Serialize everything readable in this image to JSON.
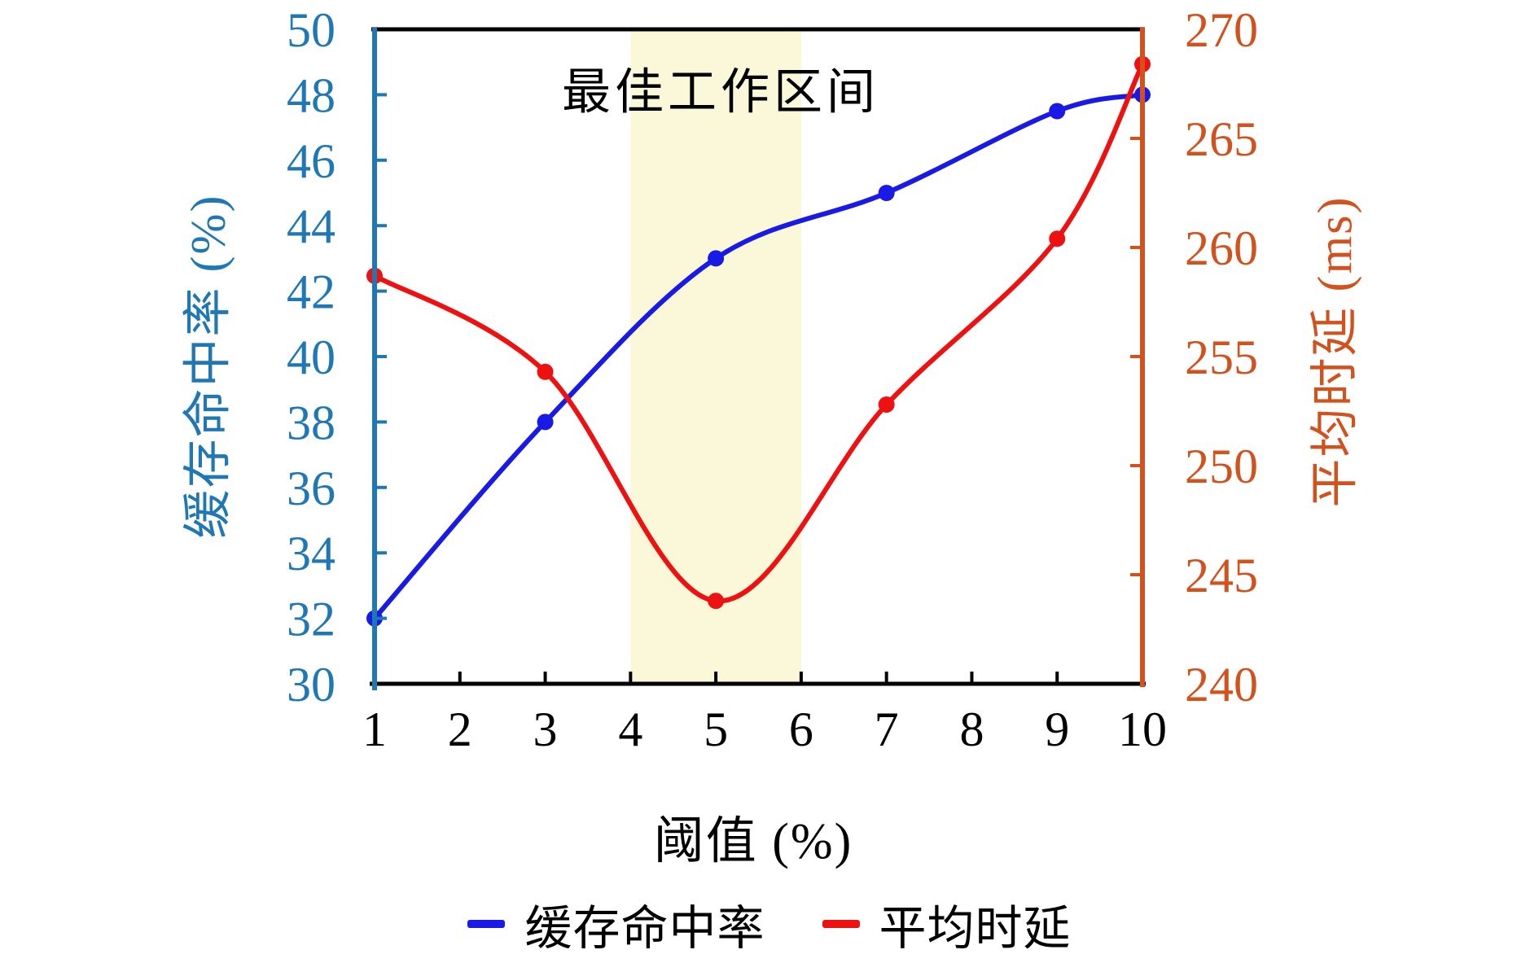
{
  "chart_data": {
    "type": "line",
    "annotation": {
      "text": "最佳工作区间"
    },
    "x_axis": {
      "label": "阈值 (%)",
      "min": 1,
      "max": 10,
      "ticks": [
        1,
        2,
        3,
        4,
        5,
        6,
        7,
        8,
        9,
        10
      ]
    },
    "left_axis": {
      "label": "缓存命中率 (%)",
      "min": 30,
      "max": 50,
      "ticks": [
        30,
        32,
        34,
        36,
        38,
        40,
        42,
        44,
        46,
        48,
        50
      ],
      "color": "#1f77b4"
    },
    "right_axis": {
      "label": "平均时延 (ms)",
      "min": 240,
      "max": 270,
      "ticks": [
        240,
        245,
        250,
        255,
        260,
        265,
        270
      ],
      "color": "#d2521e"
    },
    "highlight_band": {
      "x_start": 4,
      "x_end": 6,
      "color": "#faf8d8"
    },
    "series": [
      {
        "name": "缓存命中率",
        "axis": "left",
        "color": "#1a1ae6",
        "x": [
          1,
          3,
          5,
          7,
          9,
          10
        ],
        "values": [
          32,
          38,
          43,
          45,
          47.5,
          48
        ]
      },
      {
        "name": "平均时延",
        "axis": "right",
        "color": "#ee1111",
        "x": [
          1,
          3,
          5,
          7,
          9,
          10
        ],
        "values": [
          258.7,
          254.3,
          243.8,
          252.8,
          260.4,
          268.4
        ]
      }
    ],
    "legend": {
      "position": "bottom"
    },
    "frame_color": "#000000"
  }
}
